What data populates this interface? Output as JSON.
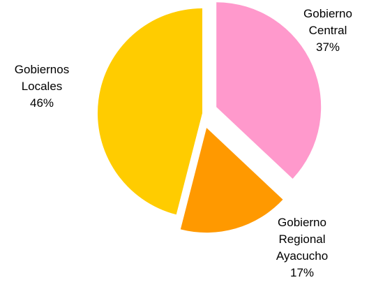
{
  "chart_data": {
    "type": "pie",
    "categories": [
      "Gobierno Central",
      "Gobierno Regional Ayacucho",
      "Gobiernos Locales"
    ],
    "values": [
      37,
      17,
      46
    ],
    "value_labels": [
      "37%",
      "17%",
      "46%"
    ],
    "colors": [
      "#ff99cc",
      "#ff9900",
      "#ffcc00"
    ]
  }
}
